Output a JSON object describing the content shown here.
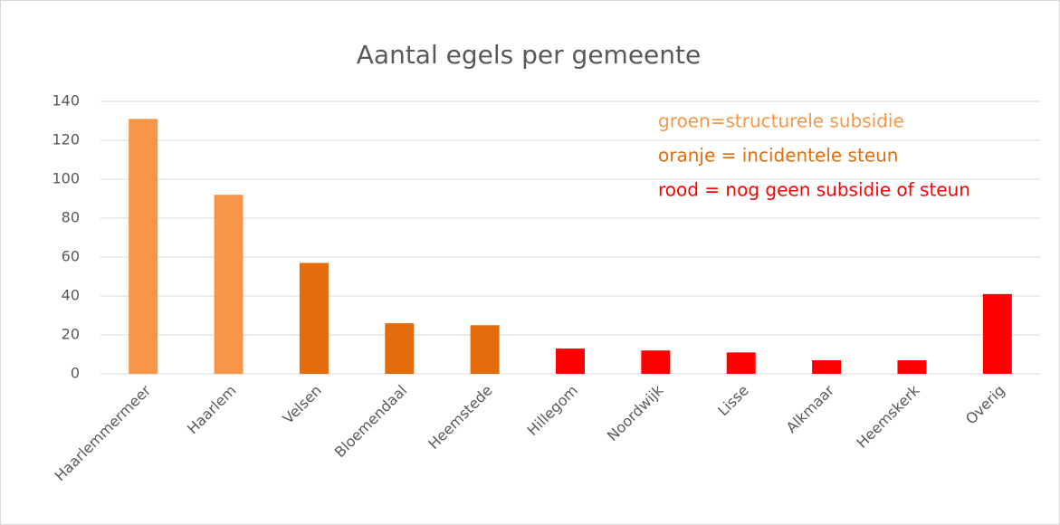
{
  "chart_data": {
    "type": "bar",
    "title": "Aantal egels per gemeente",
    "categories": [
      "Haarlemmermeer",
      "Haarlem",
      "Velsen",
      "Bloemendaal",
      "Heemstede",
      "Hillegom",
      "Noordwijk",
      "Lisse",
      "Alkmaar",
      "Heemskerk",
      "Overig"
    ],
    "values": [
      131,
      92,
      57,
      26,
      25,
      13,
      12,
      11,
      7,
      7,
      41
    ],
    "colors": [
      "#f79646",
      "#f79646",
      "#e46c0a",
      "#e46c0a",
      "#e46c0a",
      "#ff0000",
      "#ff0000",
      "#ff0000",
      "#ff0000",
      "#ff0000",
      "#ff0000"
    ],
    "ylim": [
      0,
      140
    ],
    "yticks": [
      0,
      20,
      40,
      60,
      80,
      100,
      120,
      140
    ],
    "grid": true,
    "annotations": [
      {
        "text": "groen=structurele subsidie",
        "color": "#f79646"
      },
      {
        "text": "oranje = incidentele steun",
        "color": "#e46c0a"
      },
      {
        "text": "rood = nog geen subsidie of steun",
        "color": "#ff0000"
      }
    ]
  }
}
